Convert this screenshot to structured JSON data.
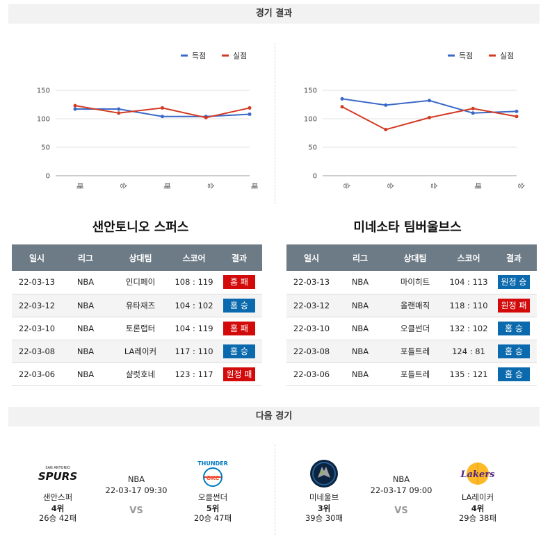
{
  "headers": {
    "results": "경기 결과",
    "next": "다음 경기"
  },
  "colors": {
    "scored": "#3a68c8",
    "conceded": "#d33a22",
    "win": "#0b6aad",
    "loss": "#d20a0a",
    "table_header": "#6d7b86"
  },
  "legend": {
    "scored": "득점",
    "conceded": "실점"
  },
  "table_columns": [
    "일시",
    "리그",
    "상대팀",
    "스코어",
    "결과"
  ],
  "teams": [
    {
      "name": "샌안토니오 스퍼스",
      "chart_data": {
        "type": "line",
        "categories": [
          "패",
          "승",
          "패",
          "승",
          "패"
        ],
        "ylim": [
          0,
          150
        ],
        "yticks": [
          0,
          50,
          100,
          150
        ],
        "series": [
          {
            "name": "득점",
            "values": [
              117,
              117,
              104,
              104,
              108
            ]
          },
          {
            "name": "실점",
            "values": [
              123,
              110,
              119,
              102,
              119
            ]
          }
        ]
      },
      "games": [
        {
          "date": "22-03-13",
          "league": "NBA",
          "opponent": "인디페이",
          "score": "108 : 119",
          "result": "홈 패",
          "type": "loss"
        },
        {
          "date": "22-03-12",
          "league": "NBA",
          "opponent": "유타재즈",
          "score": "104 : 102",
          "result": "홈 승",
          "type": "win"
        },
        {
          "date": "22-03-10",
          "league": "NBA",
          "opponent": "토론랩터",
          "score": "104 : 119",
          "result": "홈 패",
          "type": "loss"
        },
        {
          "date": "22-03-08",
          "league": "NBA",
          "opponent": "LA레이커",
          "score": "117 : 110",
          "result": "홈 승",
          "type": "win"
        },
        {
          "date": "22-03-06",
          "league": "NBA",
          "opponent": "샬럿호네",
          "score": "123 : 117",
          "result": "원정 패",
          "type": "loss"
        }
      ]
    },
    {
      "name": "미네소타 팀버울브스",
      "chart_data": {
        "type": "line",
        "categories": [
          "승",
          "승",
          "승",
          "패",
          "승"
        ],
        "ylim": [
          0,
          150
        ],
        "yticks": [
          0,
          50,
          100,
          150
        ],
        "series": [
          {
            "name": "득점",
            "values": [
              135,
              124,
              132,
              110,
              113
            ]
          },
          {
            "name": "실점",
            "values": [
              121,
              81,
              102,
              118,
              104
            ]
          }
        ]
      },
      "games": [
        {
          "date": "22-03-13",
          "league": "NBA",
          "opponent": "마이히트",
          "score": "104 : 113",
          "result": "원정 승",
          "type": "win"
        },
        {
          "date": "22-03-12",
          "league": "NBA",
          "opponent": "올랜매직",
          "score": "118 : 110",
          "result": "원정 패",
          "type": "loss"
        },
        {
          "date": "22-03-10",
          "league": "NBA",
          "opponent": "오클썬더",
          "score": "132 : 102",
          "result": "홈 승",
          "type": "win"
        },
        {
          "date": "22-03-08",
          "league": "NBA",
          "opponent": "포틀트레",
          "score": "124 : 81",
          "result": "홈 승",
          "type": "win"
        },
        {
          "date": "22-03-06",
          "league": "NBA",
          "opponent": "포틀트레",
          "score": "135 : 121",
          "result": "홈 승",
          "type": "win"
        }
      ]
    }
  ],
  "next_games": [
    {
      "league": "NBA",
      "datetime": "22-03-17 09:30",
      "vs": "VS",
      "home": {
        "name": "샌안스퍼",
        "rank": "4위",
        "record": "26승 42패",
        "logo": "spurs-logo",
        "logo_text": "SPURS",
        "logo_small": "SAN ANTONIO"
      },
      "away": {
        "name": "오클썬더",
        "rank": "5위",
        "record": "20승 47패",
        "logo": "thunder-logo",
        "logo_text": "THUNDER",
        "logo_small": "OKC"
      }
    },
    {
      "league": "NBA",
      "datetime": "22-03-17 09:00",
      "vs": "VS",
      "home": {
        "name": "미네울브",
        "rank": "3위",
        "record": "39승 30패",
        "logo": "timberwolves-logo"
      },
      "away": {
        "name": "LA레이커",
        "rank": "4위",
        "record": "29승 38패",
        "logo": "lakers-logo",
        "logo_text": "Lakers"
      }
    }
  ]
}
